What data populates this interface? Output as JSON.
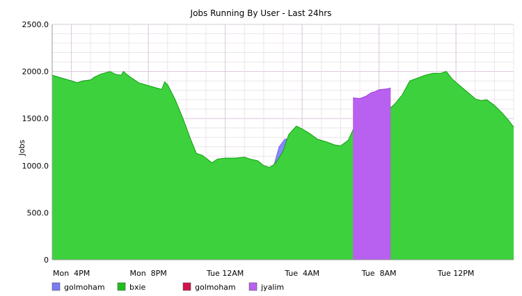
{
  "chart_data": {
    "type": "area",
    "stacked": true,
    "title": "Jobs Running By User - Last 24hrs",
    "xlabel": "",
    "ylabel": "Jobs",
    "ylim": [
      0,
      2500
    ],
    "xlim_hours": [
      0,
      24
    ],
    "grid": true,
    "y_ticks": [
      "0",
      "500.0",
      "1000.0",
      "1500.0",
      "2000.0",
      "2500.0"
    ],
    "y_tick_values": [
      0,
      500,
      1000,
      1500,
      2000,
      2500
    ],
    "x_ticks": [
      {
        "label": "Mon  4PM",
        "hour": 1
      },
      {
        "label": "Mon  8PM",
        "hour": 5
      },
      {
        "label": "Tue 12AM",
        "hour": 9
      },
      {
        "label": "Tue  4AM",
        "hour": 13
      },
      {
        "label": "Tue  8AM",
        "hour": 17
      },
      {
        "label": "Tue 12PM",
        "hour": 21
      }
    ],
    "legend": [
      {
        "name": "golmoham",
        "color": "#7b7bf2"
      },
      {
        "name": "bxie",
        "color": "#1ec01e"
      },
      {
        "name": "golmoham",
        "color": "#d2144a"
      },
      {
        "name": "jyalim",
        "color": "#b860f0"
      }
    ],
    "legend_position": "bottom",
    "series": [
      {
        "name": "golmoham",
        "fill": "#8888ff",
        "stroke": "#6a6ae0",
        "points": [
          [
            0,
            1960
          ],
          [
            0.5,
            1930
          ],
          [
            1,
            1900
          ],
          [
            1.3,
            1880
          ],
          [
            1.6,
            1900
          ],
          [
            2,
            1910
          ],
          [
            2.2,
            1940
          ],
          [
            3,
            1950
          ],
          [
            3.3,
            1900
          ],
          [
            4,
            1780
          ],
          [
            4.5,
            1690
          ],
          [
            5,
            1650
          ],
          [
            5.5,
            1630
          ],
          [
            5.9,
            1600
          ],
          [
            6.2,
            1460
          ],
          [
            6.6,
            1250
          ],
          [
            7,
            1050
          ],
          [
            7.3,
            920
          ],
          [
            7.6,
            900
          ],
          [
            8,
            830
          ],
          [
            8.4,
            780
          ],
          [
            9,
            770
          ],
          [
            9.5,
            770
          ],
          [
            10,
            780
          ],
          [
            10.5,
            790
          ],
          [
            11,
            800
          ],
          [
            11.3,
            860
          ],
          [
            11.5,
            980
          ],
          [
            11.8,
            1200
          ],
          [
            12.1,
            1280
          ],
          [
            12.5,
            1290
          ],
          [
            12.8,
            1290
          ],
          [
            13.2,
            1240
          ],
          [
            13.6,
            1210
          ],
          [
            14,
            1170
          ],
          [
            14.5,
            1130
          ],
          [
            15,
            1090
          ],
          [
            15.5,
            1060
          ],
          [
            16,
            1030
          ],
          [
            16.3,
            1010
          ],
          [
            16.6,
            1000
          ],
          [
            17,
            1000
          ],
          [
            17.5,
            1060
          ],
          [
            18,
            1180
          ],
          [
            18.4,
            1300
          ],
          [
            19,
            1300
          ],
          [
            19.5,
            1310
          ],
          [
            20,
            1320
          ],
          [
            20.3,
            1350
          ],
          [
            21,
            1350
          ],
          [
            21.5,
            1340
          ],
          [
            22,
            1340
          ],
          [
            22.3,
            1400
          ],
          [
            23,
            1400
          ],
          [
            23.4,
            1350
          ],
          [
            23.7,
            1300
          ],
          [
            24,
            1250
          ]
        ]
      },
      {
        "name": "bxie",
        "fill": "#3dd23d",
        "stroke": "#0f9f0f",
        "points": [
          [
            0,
            1960
          ],
          [
            0.5,
            1930
          ],
          [
            1,
            1900
          ],
          [
            1.3,
            1880
          ],
          [
            1.6,
            1900
          ],
          [
            2,
            1910
          ],
          [
            2.2,
            1940
          ],
          [
            2.5,
            1970
          ],
          [
            3,
            2000
          ],
          [
            3.3,
            1970
          ],
          [
            3.6,
            1960
          ],
          [
            3.7,
            2000
          ],
          [
            4,
            1950
          ],
          [
            4.5,
            1880
          ],
          [
            5,
            1850
          ],
          [
            5.5,
            1820
          ],
          [
            5.7,
            1810
          ],
          [
            5.85,
            1890
          ],
          [
            6,
            1860
          ],
          [
            6.4,
            1700
          ],
          [
            6.8,
            1500
          ],
          [
            7.2,
            1280
          ],
          [
            7.5,
            1130
          ],
          [
            7.8,
            1110
          ],
          [
            8,
            1080
          ],
          [
            8.3,
            1030
          ],
          [
            8.6,
            1070
          ],
          [
            9,
            1080
          ],
          [
            9.5,
            1080
          ],
          [
            10,
            1090
          ],
          [
            10.3,
            1070
          ],
          [
            10.7,
            1050
          ],
          [
            11,
            1000
          ],
          [
            11.3,
            980
          ],
          [
            11.6,
            1020
          ],
          [
            12,
            1150
          ],
          [
            12.3,
            1330
          ],
          [
            12.7,
            1420
          ],
          [
            13,
            1390
          ],
          [
            13.4,
            1340
          ],
          [
            13.8,
            1280
          ],
          [
            14.3,
            1250
          ],
          [
            14.7,
            1220
          ],
          [
            15,
            1210
          ],
          [
            15.4,
            1270
          ],
          [
            15.8,
            1450
          ],
          [
            16.2,
            1470
          ],
          [
            16.6,
            1520
          ],
          [
            17,
            1550
          ],
          [
            17.4,
            1580
          ],
          [
            17.8,
            1650
          ],
          [
            18.2,
            1750
          ],
          [
            18.6,
            1900
          ],
          [
            19,
            1930
          ],
          [
            19.4,
            1960
          ],
          [
            19.8,
            1980
          ],
          [
            20.2,
            1980
          ],
          [
            20.5,
            2000
          ],
          [
            20.8,
            1920
          ],
          [
            21.2,
            1850
          ],
          [
            21.6,
            1780
          ],
          [
            22,
            1710
          ],
          [
            22.3,
            1690
          ],
          [
            22.6,
            1700
          ],
          [
            23,
            1640
          ],
          [
            23.4,
            1560
          ],
          [
            23.7,
            1490
          ],
          [
            24,
            1410
          ]
        ]
      },
      {
        "name": "golmoham",
        "fill": "#d9446a",
        "stroke": "#b81844",
        "points": [
          [
            15.65,
            1720
          ],
          [
            16,
            1710
          ],
          [
            16.3,
            1730
          ],
          [
            16.6,
            1770
          ],
          [
            16.8,
            1780
          ],
          [
            17,
            1800
          ],
          [
            17.4,
            1810
          ],
          [
            17.6,
            1820
          ]
        ]
      },
      {
        "name": "jyalim",
        "fill": "#b860f0",
        "stroke": "#a040e0",
        "points": [
          [
            15.65,
            1720
          ],
          [
            16,
            1712
          ],
          [
            16.3,
            1735
          ],
          [
            16.6,
            1775
          ],
          [
            16.8,
            1786
          ],
          [
            17,
            1806
          ],
          [
            17.4,
            1815
          ],
          [
            17.6,
            1825
          ]
        ]
      }
    ]
  }
}
